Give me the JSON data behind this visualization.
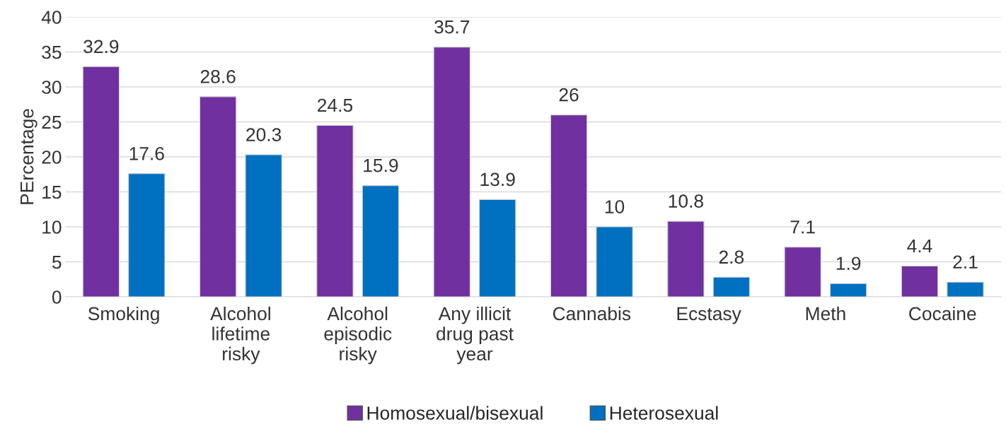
{
  "chart_data": {
    "type": "bar",
    "ylabel": "PErcentage",
    "categories": [
      "Smoking",
      "Alcohol lifetime risky",
      "Alcohol episodic risky",
      "Any illicit drug past year",
      "Cannabis",
      "Ecstasy",
      "Meth",
      "Cocaine"
    ],
    "series": [
      {
        "name": "Homosexual/bisexual",
        "color": "#7030a0",
        "values": [
          32.9,
          28.6,
          24.5,
          35.7,
          26,
          10.8,
          7.1,
          4.4
        ]
      },
      {
        "name": "Heterosexual",
        "color": "#0070c0",
        "values": [
          17.6,
          20.3,
          15.9,
          13.9,
          10,
          2.8,
          1.9,
          2.1
        ]
      }
    ],
    "ylim": [
      0,
      40
    ],
    "yticks": [
      0,
      5,
      10,
      15,
      20,
      25,
      30,
      35,
      40
    ],
    "grid": "y",
    "legend": "bottom",
    "data_labels": true
  }
}
